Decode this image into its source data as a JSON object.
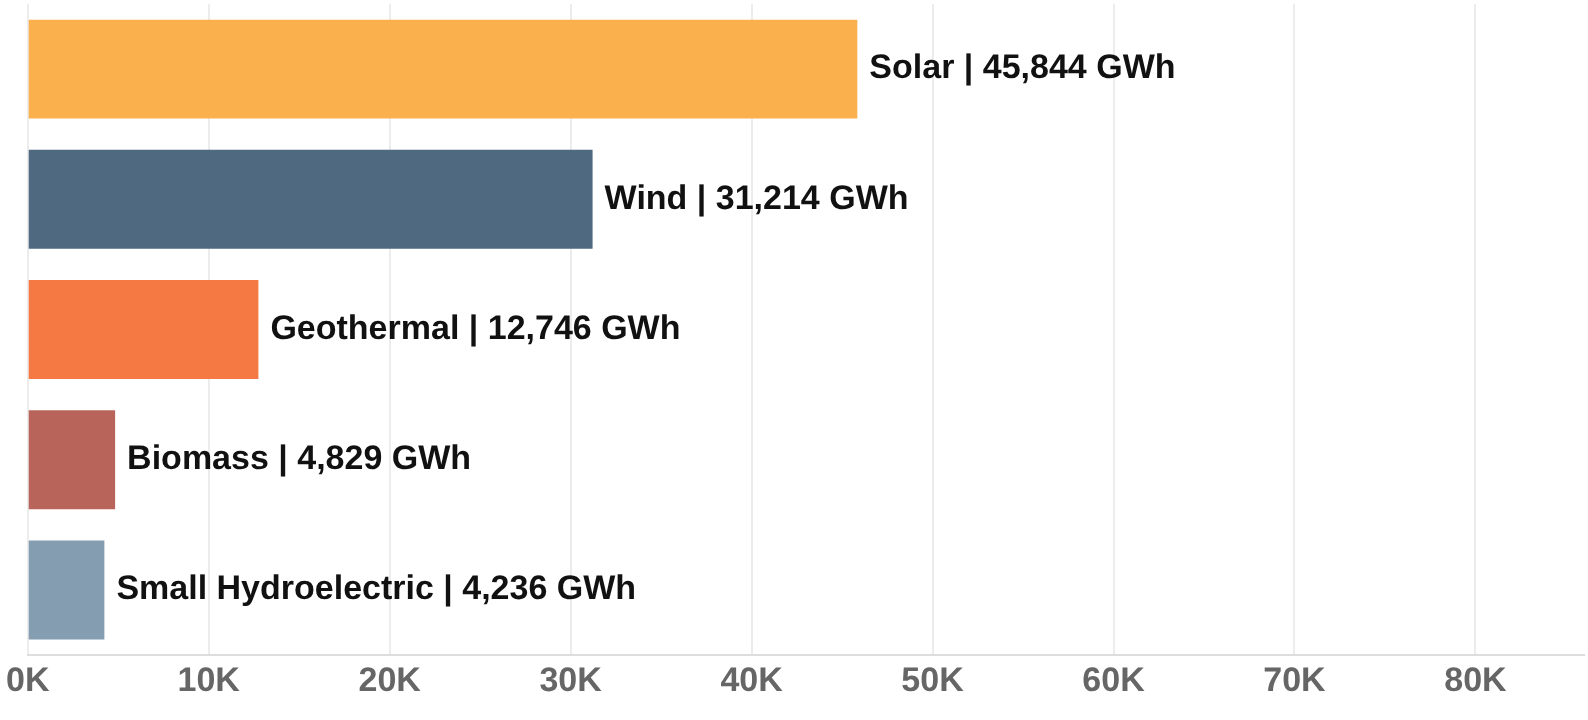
{
  "chart_data": {
    "type": "bar",
    "orientation": "horizontal",
    "categories": [
      "Solar",
      "Wind",
      "Geothermal",
      "Biomass",
      "Small Hydroelectric"
    ],
    "values": [
      45844,
      31214,
      12746,
      4829,
      4236
    ],
    "colors": [
      "#fbb04e",
      "#4f6980",
      "#f47942",
      "#b9645a",
      "#849db1"
    ],
    "value_labels": [
      "| 45,844 GWh",
      "| 31,214 GWh",
      "| 12,746 GWh",
      "| 4,829 GWh",
      "| 4,236 GWh"
    ],
    "xlim": [
      0,
      86000
    ],
    "xticks": [
      {
        "value": 0,
        "label": "0K"
      },
      {
        "value": 10000,
        "label": "10K"
      },
      {
        "value": 20000,
        "label": "20K"
      },
      {
        "value": 30000,
        "label": "30K"
      },
      {
        "value": 40000,
        "label": "40K"
      },
      {
        "value": 50000,
        "label": "50K"
      },
      {
        "value": 60000,
        "label": "60K"
      },
      {
        "value": 70000,
        "label": "70K"
      },
      {
        "value": 80000,
        "label": "80K"
      }
    ],
    "grid": "x",
    "tick_labels": "x",
    "legend": false
  }
}
